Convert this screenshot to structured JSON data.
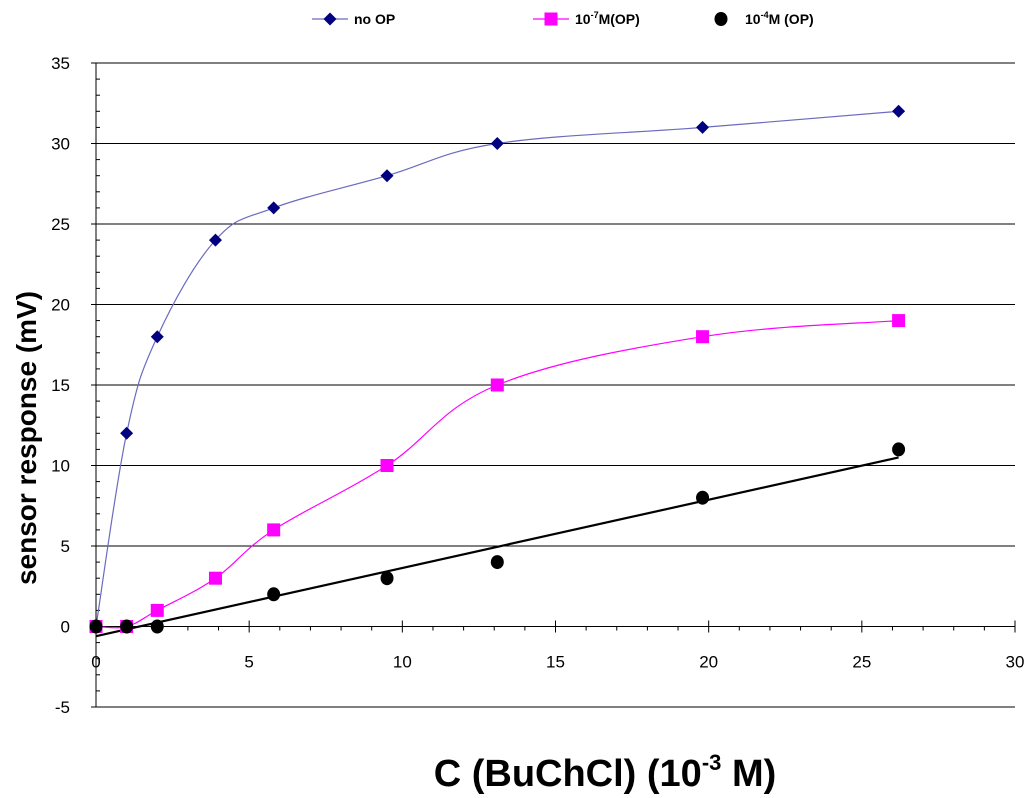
{
  "chart_data": {
    "type": "scatter",
    "xlabel": "C (BuChCl) (10-3 M)",
    "xlabel_parts": {
      "main": "C (BuChCl) (10",
      "sup": "-3",
      "tail": " M)"
    },
    "ylabel": "sensor response (mV)",
    "xlim": [
      0,
      30
    ],
    "ylim": [
      -5,
      35
    ],
    "xticks": [
      0,
      5,
      10,
      15,
      20,
      25,
      30
    ],
    "yticks": [
      -5,
      0,
      5,
      10,
      15,
      20,
      25,
      30,
      35
    ],
    "xtick_labels": [
      "0",
      "5",
      "10",
      "15",
      "20",
      "25",
      "30"
    ],
    "ytick_labels": [
      "-5",
      "0",
      "5",
      "10",
      "15",
      "20",
      "25",
      "30",
      "35"
    ],
    "grid": "horizontal",
    "legend_position": "top",
    "series": [
      {
        "name": "no OP",
        "legend": {
          "pre": "no OP",
          "sup": "",
          "post": ""
        },
        "marker": "diamond",
        "color": "#000080",
        "line_color": "#6b6bbf",
        "line": "smooth",
        "x": [
          0,
          1,
          2,
          3.9,
          5.8,
          9.5,
          13.1,
          19.8,
          26.2
        ],
        "y": [
          0,
          12,
          18,
          24,
          26,
          28,
          30,
          31,
          32
        ]
      },
      {
        "name": "10-7M(OP)",
        "legend": {
          "pre": "10",
          "sup": "-7",
          "post": "M(OP)"
        },
        "marker": "square",
        "color": "#ff00ff",
        "line_color": "#ff00ff",
        "line": "smooth",
        "x": [
          0,
          1,
          2,
          3.9,
          5.8,
          9.5,
          13.1,
          19.8,
          26.2
        ],
        "y": [
          0,
          0,
          1,
          3,
          6,
          10,
          15,
          18,
          19
        ]
      },
      {
        "name": "10-4M (OP)",
        "legend": {
          "pre": "10",
          "sup": "-4",
          "post": "M (OP)"
        },
        "marker": "circle",
        "color": "#000000",
        "line_color": "#000000",
        "line": "linear-fit",
        "fit": {
          "x0": 0,
          "y0": -0.6,
          "x1": 26.2,
          "y1": 10.5
        },
        "x": [
          0,
          1,
          2,
          5.8,
          9.5,
          13.1,
          19.8,
          26.2
        ],
        "y": [
          0,
          0,
          0,
          2,
          3,
          4,
          8,
          11
        ]
      }
    ]
  }
}
